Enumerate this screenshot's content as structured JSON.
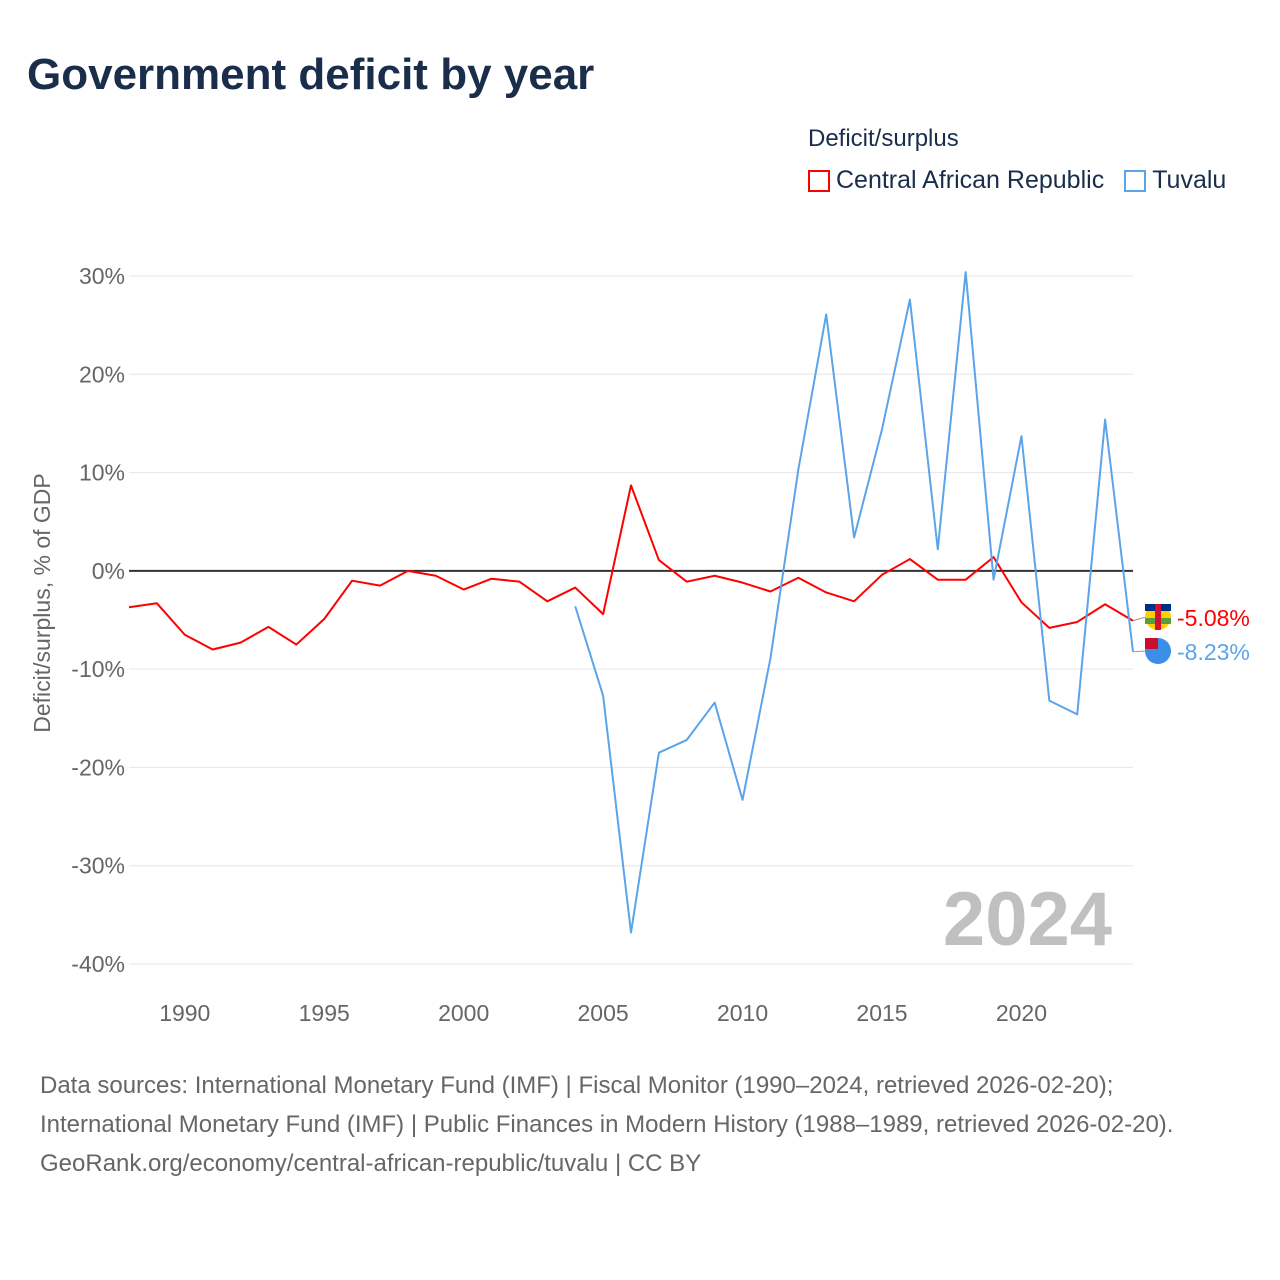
{
  "title": "Government deficit by year",
  "legend": {
    "title": "Deficit/surplus",
    "items": [
      {
        "name": "Central African Republic",
        "color": "#ff0000"
      },
      {
        "name": "Tuvalu",
        "color": "#5ba4ea"
      }
    ]
  },
  "chart_data": {
    "type": "line",
    "title": "Government deficit by year",
    "xlabel": "",
    "ylabel": "Deficit/surplus, % of GDP",
    "xlim": [
      1988,
      2024
    ],
    "ylim": [
      -40,
      30
    ],
    "x_ticks": [
      1990,
      1995,
      2000,
      2005,
      2010,
      2015,
      2020
    ],
    "y_ticks": [
      30,
      20,
      10,
      0,
      -10,
      -20,
      -30,
      -40
    ],
    "y_tick_labels": [
      "30%",
      "20%",
      "10%",
      "0%",
      "-10%",
      "-20%",
      "-30%",
      "-40%"
    ],
    "grid": true,
    "legend_position": "top-right",
    "annotation_year": "2024",
    "series": [
      {
        "name": "Central African Republic",
        "color": "#ff0000",
        "end_label": "-5.08%",
        "x": [
          1988,
          1989,
          1990,
          1991,
          1992,
          1993,
          1994,
          1995,
          1996,
          1997,
          1998,
          1999,
          2000,
          2001,
          2002,
          2003,
          2004,
          2005,
          2006,
          2007,
          2008,
          2009,
          2010,
          2011,
          2012,
          2013,
          2014,
          2015,
          2016,
          2017,
          2018,
          2019,
          2020,
          2021,
          2022,
          2023,
          2024
        ],
        "values": [
          -3.7,
          -3.3,
          -6.5,
          -8.0,
          -7.3,
          -5.7,
          -7.5,
          -4.9,
          -1.0,
          -1.5,
          0.0,
          -0.5,
          -1.9,
          -0.8,
          -1.1,
          -3.1,
          -1.7,
          -4.4,
          8.7,
          1.1,
          -1.1,
          -0.5,
          -1.2,
          -2.1,
          -0.7,
          -2.2,
          -3.1,
          -0.4,
          1.2,
          -0.9,
          -0.9,
          1.4,
          -3.2,
          -5.8,
          -5.2,
          -3.4,
          -5.08
        ]
      },
      {
        "name": "Tuvalu",
        "color": "#5ba4ea",
        "end_label": "-8.23%",
        "x": [
          2004,
          2005,
          2006,
          2007,
          2008,
          2009,
          2010,
          2011,
          2012,
          2013,
          2014,
          2015,
          2016,
          2017,
          2018,
          2019,
          2020,
          2021,
          2022,
          2023,
          2024
        ],
        "values": [
          -3.6,
          -12.7,
          -36.8,
          -18.5,
          -17.2,
          -13.4,
          -23.3,
          -8.9,
          10.3,
          26.1,
          3.4,
          14.4,
          27.6,
          2.2,
          30.4,
          -0.9,
          13.7,
          -13.2,
          -14.6,
          15.4,
          -8.23
        ]
      }
    ]
  },
  "footer": {
    "sources": "Data sources: International Monetary Fund (IMF) | Fiscal Monitor (1990–2024, retrieved 2026-02-20); International Monetary Fund (IMF) | Public Finances in Modern History (1988–1989, retrieved 2026-02-20).",
    "credit": "GeoRank.org/economy/central-african-republic/tuvalu | CC BY"
  }
}
